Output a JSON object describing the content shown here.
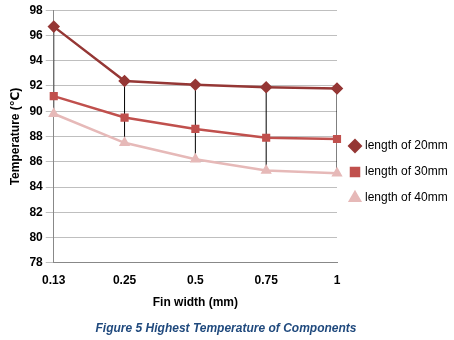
{
  "chart_data": {
    "type": "line",
    "title": "Figure 5 Highest Temperature of Components",
    "x_label": "Fin width (mm)",
    "y_label": "Temperature (℃)",
    "categories": [
      "0.13",
      "0.25",
      "0.5",
      "0.75",
      "1"
    ],
    "series": [
      {
        "name": "length of 20mm",
        "color": "#953735",
        "marker": "diamond",
        "values": [
          96.7,
          92.4,
          92.1,
          91.9,
          91.8
        ]
      },
      {
        "name": "length of 30mm",
        "color": "#c0504d",
        "marker": "square",
        "values": [
          91.2,
          89.5,
          88.6,
          87.9,
          87.8
        ]
      },
      {
        "name": "length of 40mm",
        "color": "#e6b9b8",
        "marker": "triangle",
        "values": [
          89.8,
          87.5,
          86.2,
          85.3,
          85.1
        ]
      }
    ],
    "ylim": [
      78,
      98
    ],
    "yticks": [
      78,
      80,
      82,
      84,
      86,
      88,
      90,
      92,
      94,
      96,
      98
    ],
    "grid": true,
    "legend": "right"
  }
}
